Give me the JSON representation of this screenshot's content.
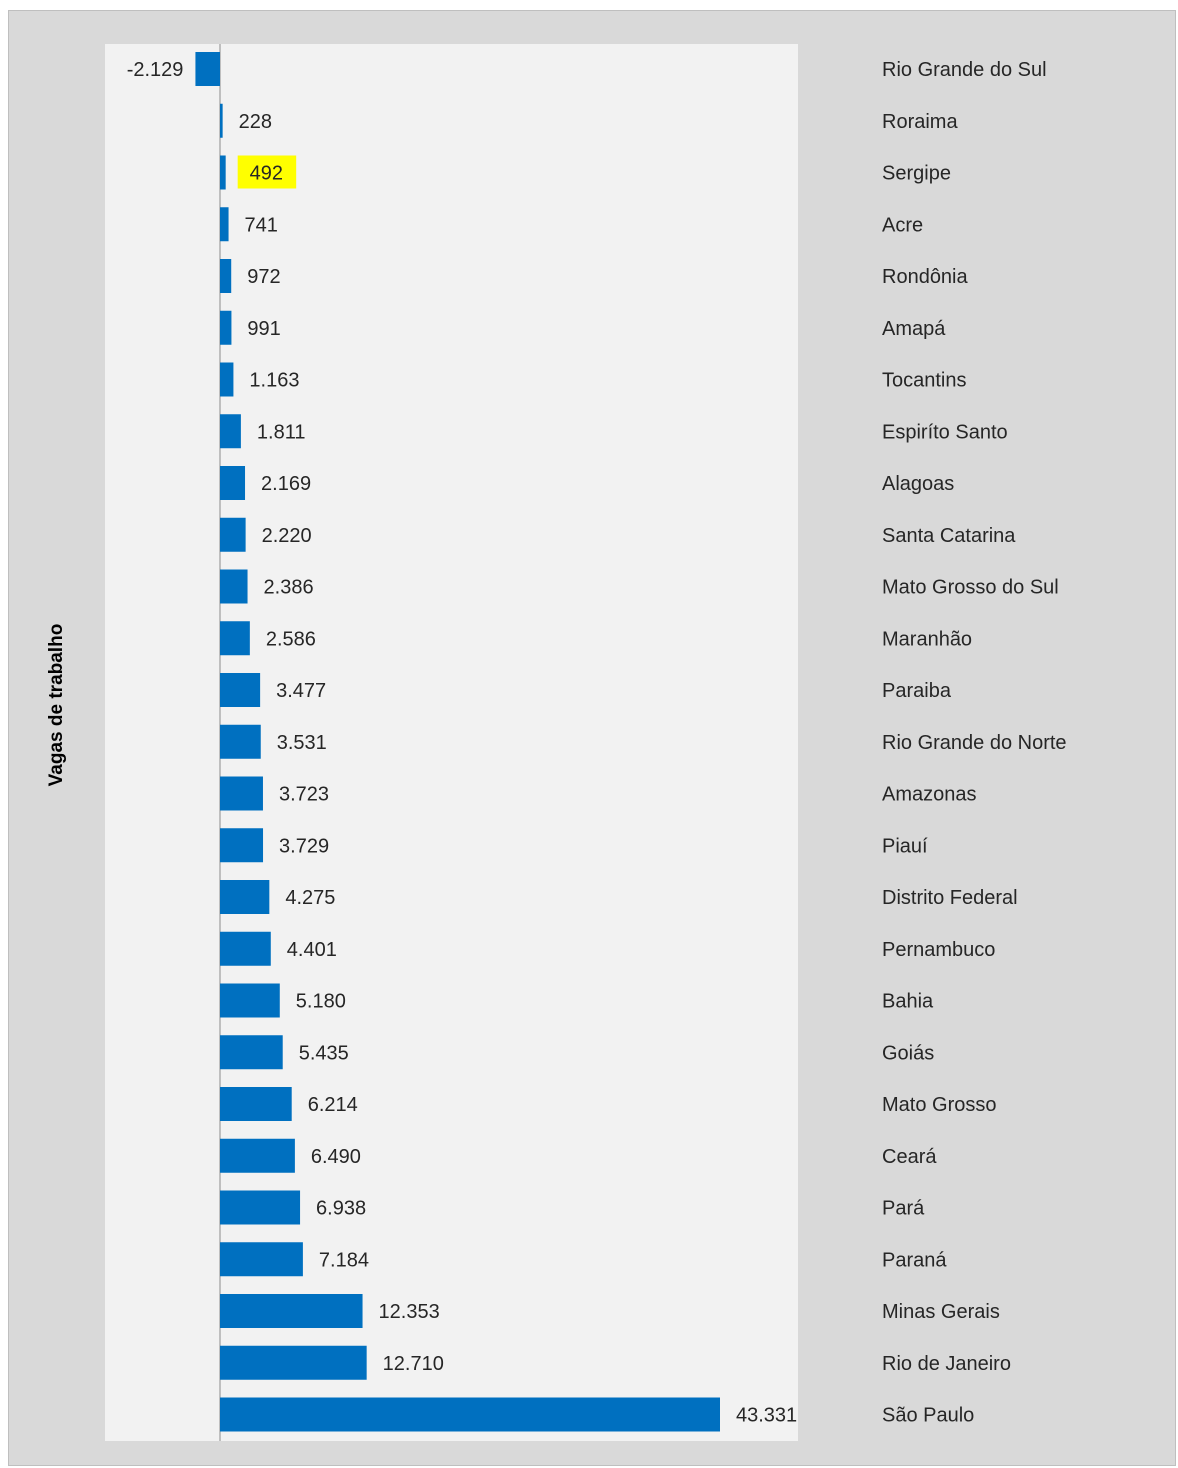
{
  "chart_data": {
    "type": "bar",
    "orientation": "horizontal",
    "ylabel": "Vagas de trabalho",
    "title": "",
    "xlabel": "",
    "bar_color": "#0070c0",
    "highlight_color": "#ffff00",
    "highlight_category": "Sergipe",
    "xlim": [
      -4600,
      45500
    ],
    "grid": false,
    "legend": "none",
    "categories": [
      "Rio Grande do Sul",
      "Roraima",
      "Sergipe",
      "Acre",
      "Rondônia",
      "Amapá",
      "Tocantins",
      "Espiríto Santo",
      "Alagoas",
      "Santa Catarina",
      "Mato Grosso do Sul",
      "Maranhão",
      "Paraiba",
      "Rio Grande do Norte",
      "Amazonas",
      "Piauí",
      "Distrito Federal",
      "Pernambuco",
      "Bahia",
      "Goiás",
      "Mato Grosso",
      "Ceará",
      "Pará",
      "Paraná",
      "Minas Gerais",
      "Rio de Janeiro",
      "São Paulo"
    ],
    "values": [
      -2129,
      228,
      492,
      741,
      972,
      991,
      1163,
      1811,
      2169,
      2220,
      2386,
      2586,
      3477,
      3531,
      3723,
      3729,
      4275,
      4401,
      5180,
      5435,
      6214,
      6490,
      6938,
      7184,
      12353,
      12710,
      43331
    ],
    "value_labels": [
      "-2.129",
      "228",
      "492",
      "741",
      "972",
      "991",
      "1.163",
      "1.811",
      "2.169",
      "2.220",
      "2.386",
      "2.586",
      "3.477",
      "3.531",
      "3.723",
      "3.729",
      "4.275",
      "4.401",
      "5.180",
      "5.435",
      "6.214",
      "6.490",
      "6.938",
      "7.184",
      "12.353",
      "12.710",
      "43.331"
    ]
  }
}
